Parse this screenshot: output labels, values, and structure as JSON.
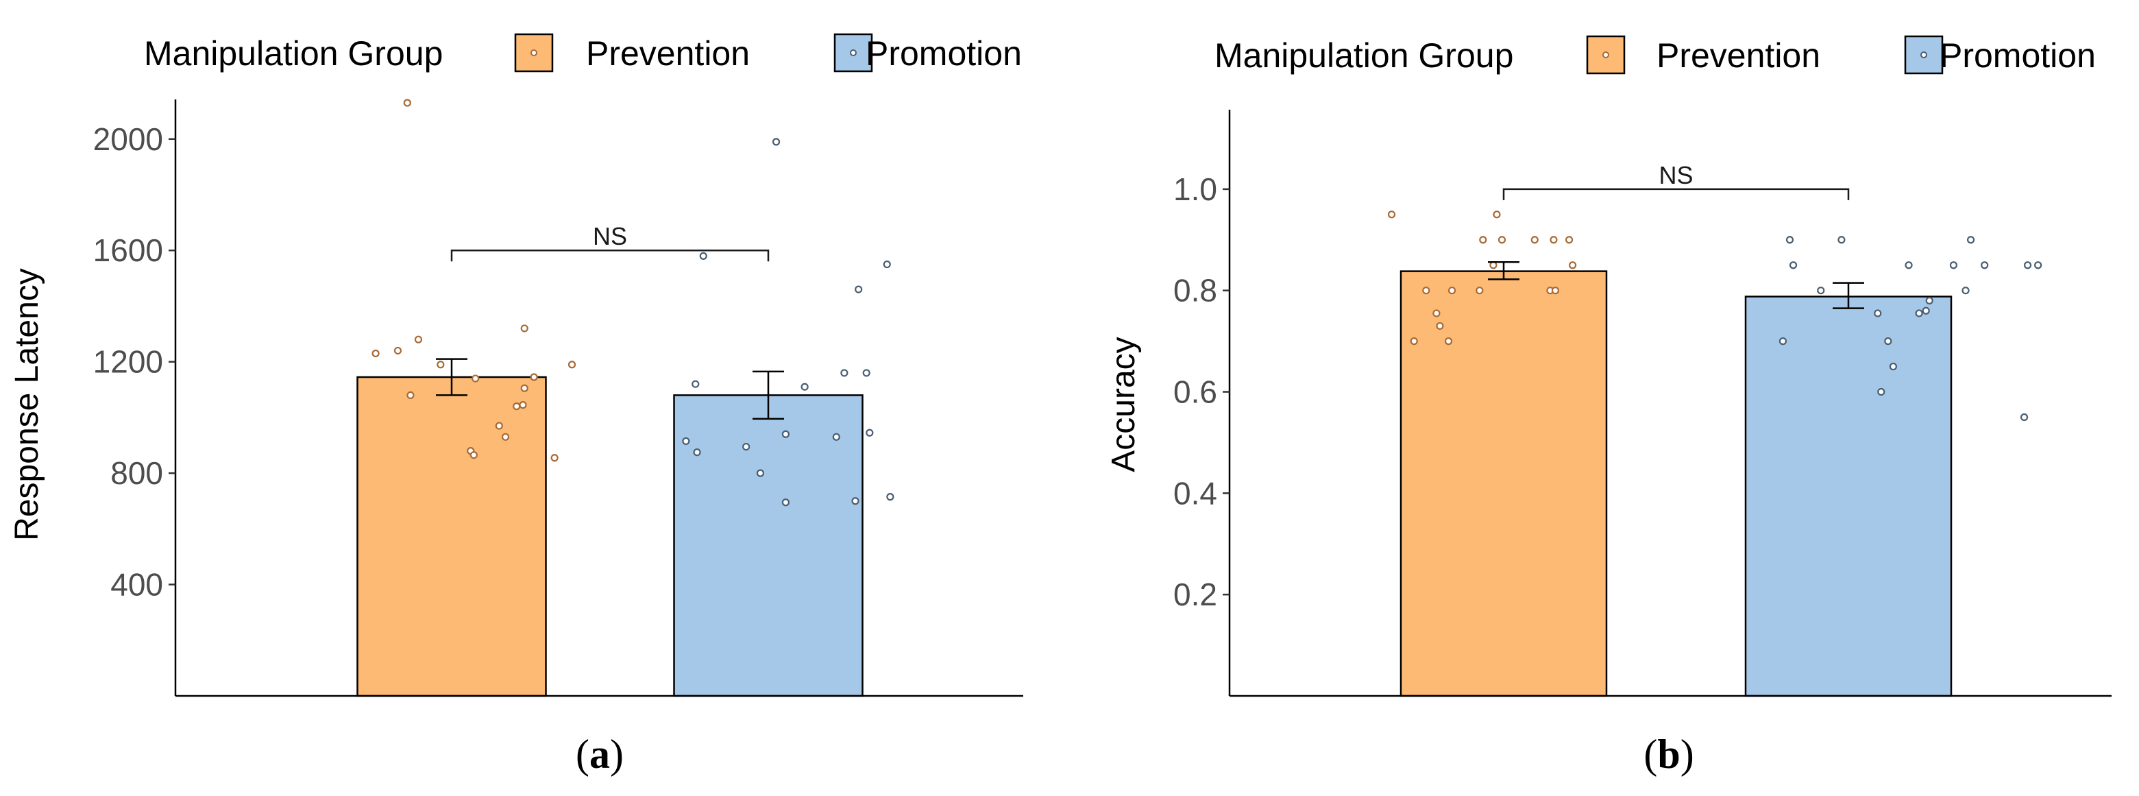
{
  "colors": {
    "prevention": "#fdba74",
    "promotion": "#a6c8e8",
    "prevention_point": "#a86a36",
    "promotion_point": "#4a5e72",
    "axis": "#000000"
  },
  "chart_data": [
    {
      "type": "bar",
      "panel": "a",
      "caption_open": "(",
      "caption_letter": "a",
      "caption_close": ")",
      "legend_title": "Manipulation Group",
      "categories": [
        "Prevention",
        "Promotion"
      ],
      "values": [
        1145,
        1080
      ],
      "error": [
        [
          1080,
          1210
        ],
        [
          995,
          1165
        ]
      ],
      "ylabel": "Response Latency",
      "ylim": [
        0,
        2130
      ],
      "yticks": [
        400,
        800,
        1200,
        1600,
        2000
      ],
      "ytick_labels": [
        "400",
        "800",
        "1200",
        "1600",
        "2000"
      ],
      "annotation": {
        "text": "NS",
        "y": 1600
      },
      "points": [
        {
          "group": "Prevention",
          "x": -0.48,
          "y": 1230
        },
        {
          "group": "Prevention",
          "x": -0.34,
          "y": 1240
        },
        {
          "group": "Prevention",
          "x": -0.26,
          "y": 1080
        },
        {
          "group": "Prevention",
          "x": -0.21,
          "y": 1280
        },
        {
          "group": "Prevention",
          "x": -0.07,
          "y": 1190
        },
        {
          "group": "Prevention",
          "x": -0.28,
          "y": 2130
        },
        {
          "group": "Prevention",
          "x": 0.12,
          "y": 880
        },
        {
          "group": "Prevention",
          "x": 0.14,
          "y": 865
        },
        {
          "group": "Prevention",
          "x": 0.15,
          "y": 1140
        },
        {
          "group": "Prevention",
          "x": 0.3,
          "y": 970
        },
        {
          "group": "Prevention",
          "x": 0.34,
          "y": 930
        },
        {
          "group": "Prevention",
          "x": 0.41,
          "y": 1040
        },
        {
          "group": "Prevention",
          "x": 0.45,
          "y": 1045
        },
        {
          "group": "Prevention",
          "x": 0.46,
          "y": 1105
        },
        {
          "group": "Prevention",
          "x": 0.46,
          "y": 1320
        },
        {
          "group": "Prevention",
          "x": 0.52,
          "y": 1145
        },
        {
          "group": "Prevention",
          "x": 0.65,
          "y": 855
        },
        {
          "group": "Prevention",
          "x": 0.76,
          "y": 1190
        },
        {
          "group": "Promotion",
          "x": -0.52,
          "y": 915
        },
        {
          "group": "Promotion",
          "x": -0.46,
          "y": 1120
        },
        {
          "group": "Promotion",
          "x": -0.45,
          "y": 875
        },
        {
          "group": "Promotion",
          "x": -0.41,
          "y": 1580
        },
        {
          "group": "Promotion",
          "x": -0.14,
          "y": 895
        },
        {
          "group": "Promotion",
          "x": -0.05,
          "y": 800
        },
        {
          "group": "Promotion",
          "x": 0.05,
          "y": 1990
        },
        {
          "group": "Promotion",
          "x": 0.11,
          "y": 940
        },
        {
          "group": "Promotion",
          "x": 0.11,
          "y": 695
        },
        {
          "group": "Promotion",
          "x": 0.23,
          "y": 1110
        },
        {
          "group": "Promotion",
          "x": 0.43,
          "y": 930
        },
        {
          "group": "Promotion",
          "x": 0.48,
          "y": 1160
        },
        {
          "group": "Promotion",
          "x": 0.55,
          "y": 700
        },
        {
          "group": "Promotion",
          "x": 0.57,
          "y": 1460
        },
        {
          "group": "Promotion",
          "x": 0.62,
          "y": 1160
        },
        {
          "group": "Promotion",
          "x": 0.64,
          "y": 945
        },
        {
          "group": "Promotion",
          "x": 0.75,
          "y": 1550
        },
        {
          "group": "Promotion",
          "x": 0.77,
          "y": 715
        }
      ]
    },
    {
      "type": "bar",
      "panel": "b",
      "caption_open": "(",
      "caption_letter": "b",
      "caption_close": ")",
      "legend_title": "Manipulation Group",
      "categories": [
        "Prevention",
        "Promotion"
      ],
      "values": [
        0.838,
        0.788
      ],
      "error": [
        [
          0.822,
          0.856
        ],
        [
          0.765,
          0.815
        ]
      ],
      "ylabel": "Accuracy",
      "ylim": [
        0,
        1.15
      ],
      "yticks": [
        0.2,
        0.4,
        0.6,
        0.8,
        1.0
      ],
      "ytick_labels": [
        "0.2",
        "0.4",
        "0.6",
        "0.8",
        "1.0"
      ],
      "annotation": {
        "text": "NS",
        "y": 1.0
      },
      "points": [
        {
          "group": "Prevention",
          "x": -0.65,
          "y": 0.95
        },
        {
          "group": "Prevention",
          "x": -0.52,
          "y": 0.7
        },
        {
          "group": "Prevention",
          "x": -0.45,
          "y": 0.8
        },
        {
          "group": "Prevention",
          "x": -0.39,
          "y": 0.755
        },
        {
          "group": "Prevention",
          "x": -0.37,
          "y": 0.73
        },
        {
          "group": "Prevention",
          "x": -0.32,
          "y": 0.7
        },
        {
          "group": "Prevention",
          "x": -0.3,
          "y": 0.8
        },
        {
          "group": "Prevention",
          "x": -0.14,
          "y": 0.8
        },
        {
          "group": "Prevention",
          "x": -0.12,
          "y": 0.9
        },
        {
          "group": "Prevention",
          "x": -0.06,
          "y": 0.85
        },
        {
          "group": "Prevention",
          "x": -0.04,
          "y": 0.95
        },
        {
          "group": "Prevention",
          "x": -0.01,
          "y": 0.9
        },
        {
          "group": "Prevention",
          "x": 0.18,
          "y": 0.9
        },
        {
          "group": "Prevention",
          "x": 0.27,
          "y": 0.8
        },
        {
          "group": "Prevention",
          "x": 0.29,
          "y": 0.9
        },
        {
          "group": "Prevention",
          "x": 0.3,
          "y": 0.8
        },
        {
          "group": "Prevention",
          "x": 0.38,
          "y": 0.9
        },
        {
          "group": "Prevention",
          "x": 0.4,
          "y": 0.85
        },
        {
          "group": "Promotion",
          "x": -0.38,
          "y": 0.7
        },
        {
          "group": "Promotion",
          "x": -0.34,
          "y": 0.9
        },
        {
          "group": "Promotion",
          "x": -0.32,
          "y": 0.85
        },
        {
          "group": "Promotion",
          "x": -0.16,
          "y": 0.8
        },
        {
          "group": "Promotion",
          "x": -0.04,
          "y": 0.9
        },
        {
          "group": "Promotion",
          "x": 0.17,
          "y": 0.755
        },
        {
          "group": "Promotion",
          "x": 0.19,
          "y": 0.6
        },
        {
          "group": "Promotion",
          "x": 0.23,
          "y": 0.7
        },
        {
          "group": "Promotion",
          "x": 0.26,
          "y": 0.65
        },
        {
          "group": "Promotion",
          "x": 0.35,
          "y": 0.85
        },
        {
          "group": "Promotion",
          "x": 0.41,
          "y": 0.755
        },
        {
          "group": "Promotion",
          "x": 0.45,
          "y": 0.76
        },
        {
          "group": "Promotion",
          "x": 0.47,
          "y": 0.78
        },
        {
          "group": "Promotion",
          "x": 0.61,
          "y": 0.85
        },
        {
          "group": "Promotion",
          "x": 0.68,
          "y": 0.8
        },
        {
          "group": "Promotion",
          "x": 0.71,
          "y": 0.9
        },
        {
          "group": "Promotion",
          "x": 0.79,
          "y": 0.85
        },
        {
          "group": "Promotion",
          "x": 1.02,
          "y": 0.55
        },
        {
          "group": "Promotion",
          "x": 1.04,
          "y": 0.85
        },
        {
          "group": "Promotion",
          "x": 1.1,
          "y": 0.85
        }
      ]
    }
  ]
}
